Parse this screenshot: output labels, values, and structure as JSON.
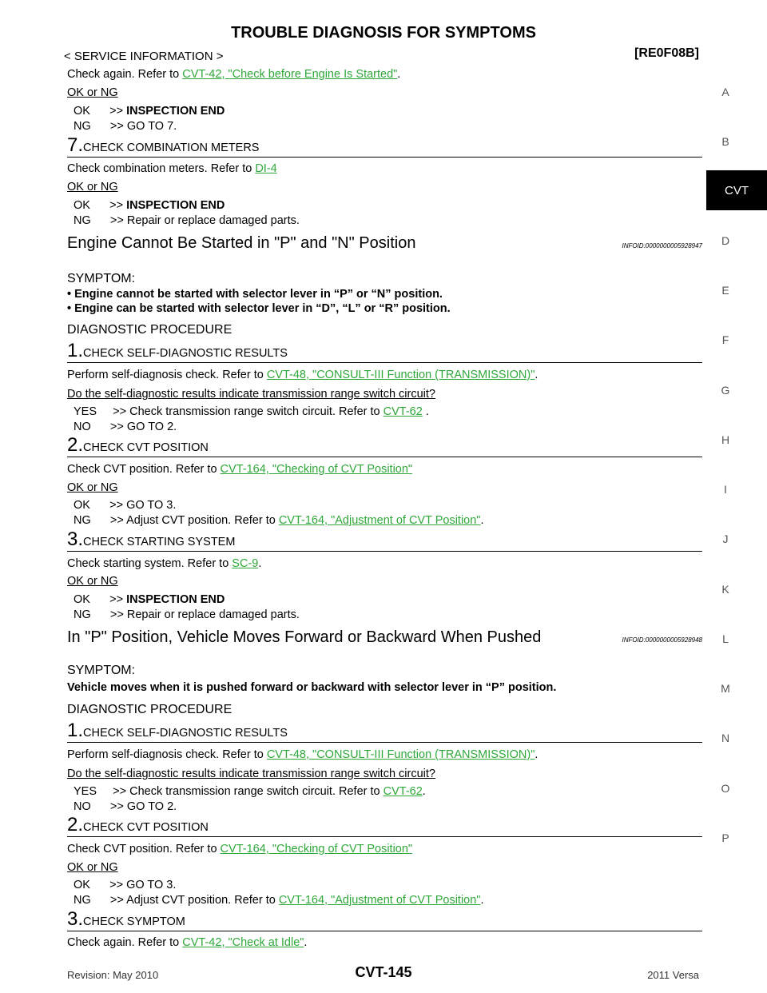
{
  "header": {
    "title": "TROUBLE DIAGNOSIS FOR SYMPTOMS",
    "service_info": "< SERVICE INFORMATION >",
    "code": "[RE0F08B]"
  },
  "sidebar": {
    "letters": [
      "A",
      "B",
      "D",
      "E",
      "F",
      "G",
      "H",
      "I",
      "J",
      "K",
      "L",
      "M",
      "N",
      "O",
      "P"
    ],
    "active": "CVT"
  },
  "top": {
    "check_again_prefix": "Check again. Refer to ",
    "check_again_link": "CVT-42, \"Check before Engine Is Started\"",
    "check_again_suffix": ".",
    "ok_ng": "OK or NG",
    "ok_line_prefix": "OK      >> ",
    "ok_line_bold": "INSPECTION END",
    "ng_line": "NG      >> GO TO 7.",
    "step7_num": "7.",
    "step7_text": "CHECK COMBINATION METERS",
    "step7_body_prefix": "Check combination meters. Refer to ",
    "step7_body_link": "DI-4",
    "step7_ok_ng": "OK or NG",
    "step7_ok_prefix": "OK      >> ",
    "step7_ok_bold": "INSPECTION END",
    "step7_ng": "NG      >> Repair or replace damaged parts."
  },
  "section1": {
    "title": "Engine Cannot Be Started in \"P\" and \"N\" Position",
    "infoid": "INFOID:0000000005928947",
    "symptom_head": "SYMPTOM:",
    "bullets": [
      "Engine cannot be started with selector lever in “P” or “N” position.",
      "Engine can be started with selector lever in “D”, “L” or “R” position."
    ],
    "diag_head": "DIAGNOSTIC PROCEDURE",
    "s1_num": "1.",
    "s1_text": "CHECK SELF-DIAGNOSTIC RESULTS",
    "s1_body_prefix": "Perform self-diagnosis check. Refer to ",
    "s1_body_link": "CVT-48, \"CONSULT-III Function (TRANSMISSION)\"",
    "s1_body_suffix": ".",
    "s1_question": "Do the self-diagnostic results indicate transmission range switch circuit?",
    "s1_yes_prefix": "YES     >> Check transmission range switch circuit. Refer to ",
    "s1_yes_link": "CVT-62",
    "s1_yes_suffix": " .",
    "s1_no": "NO      >> GO TO 2.",
    "s2_num": "2.",
    "s2_text": "CHECK CVT POSITION",
    "s2_body_prefix": "Check CVT position. Refer to ",
    "s2_body_link": "CVT-164, \"Checking of CVT Position\"",
    "s2_ok_ng": "OK or NG",
    "s2_ok": "OK      >> GO TO 3.",
    "s2_ng_prefix": "NG      >> Adjust CVT position. Refer to ",
    "s2_ng_link": "CVT-164, \"Adjustment of CVT Position\"",
    "s2_ng_suffix": ".",
    "s3_num": "3.",
    "s3_text": "CHECK STARTING SYSTEM",
    "s3_body_prefix": "Check starting system. Refer to ",
    "s3_body_link": "SC-9",
    "s3_body_suffix": ".",
    "s3_ok_ng": "OK or NG",
    "s3_ok_prefix": "OK      >> ",
    "s3_ok_bold": "INSPECTION END",
    "s3_ng": "NG      >> Repair or replace damaged parts."
  },
  "section2": {
    "title": "In \"P\" Position, Vehicle Moves Forward or Backward When Pushed",
    "infoid": "INFOID:0000000005928948",
    "symptom_head": "SYMPTOM:",
    "symptom_text": "Vehicle moves when it is pushed forward or backward with selector lever in “P” position.",
    "diag_head": "DIAGNOSTIC PROCEDURE",
    "s1_num": "1.",
    "s1_text": "CHECK SELF-DIAGNOSTIC RESULTS",
    "s1_body_prefix": "Perform self-diagnosis check. Refer to ",
    "s1_body_link": "CVT-48, \"CONSULT-III Function (TRANSMISSION)\"",
    "s1_body_suffix": ".",
    "s1_question": "Do the self-diagnostic results indicate transmission range switch circuit?",
    "s1_yes_prefix": "YES     >> Check transmission range switch circuit. Refer to ",
    "s1_yes_link": "CVT-62",
    "s1_yes_suffix": ".",
    "s1_no": "NO      >> GO TO 2.",
    "s2_num": "2.",
    "s2_text": "CHECK CVT POSITION",
    "s2_body_prefix": "Check CVT position. Refer to ",
    "s2_body_link": "CVT-164, \"Checking of CVT Position\"",
    "s2_ok_ng": "OK or NG",
    "s2_ok": "OK      >> GO TO 3.",
    "s2_ng_prefix": "NG      >> Adjust CVT position. Refer to ",
    "s2_ng_link": "CVT-164, \"Adjustment of CVT Position\"",
    "s2_ng_suffix": ".",
    "s3_num": "3.",
    "s3_text": "CHECK SYMPTOM",
    "s3_body_prefix": "Check again. Refer to ",
    "s3_body_link": "CVT-42, \"Check at Idle\"",
    "s3_body_suffix": "."
  },
  "footer": {
    "revision": "Revision: May 2010",
    "page": "CVT-145",
    "model": "2011 Versa"
  },
  "colors": {
    "link": "#2fa83a",
    "tab_bg": "#000000"
  }
}
